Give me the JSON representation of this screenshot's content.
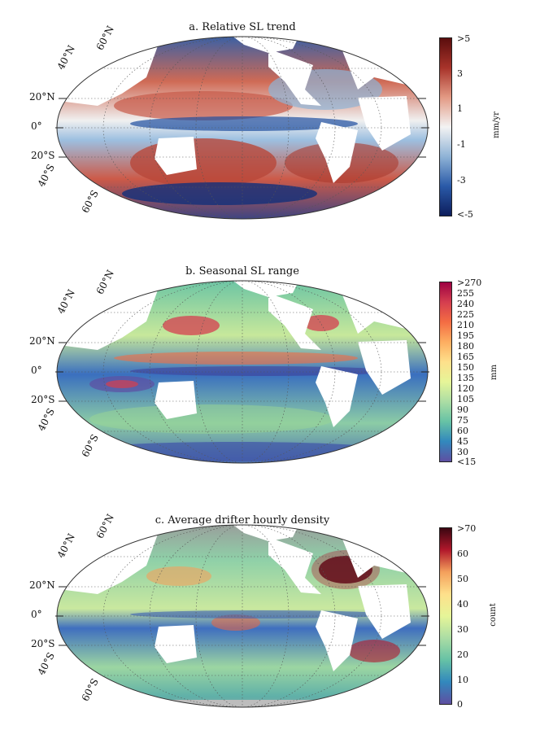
{
  "panels": [
    {
      "id": "a",
      "title": "a. Relative SL trend",
      "colorbar": {
        "unit": "mm/yr",
        "ticks": [
          ">5",
          "3",
          "1",
          "-1",
          "-3",
          "<-5"
        ],
        "colors": [
          "#5a0d0d",
          "#a8332a",
          "#e39a84",
          "#f3f3f3",
          "#8fb3d6",
          "#2a5aa8",
          "#0d1d5c"
        ]
      }
    },
    {
      "id": "b",
      "title": "b. Seasonal SL range",
      "colorbar": {
        "unit": "mm",
        "ticks": [
          ">270",
          "255",
          "240",
          "225",
          "210",
          "195",
          "180",
          "165",
          "150",
          "135",
          "120",
          "105",
          "90",
          "75",
          "60",
          "45",
          "30",
          "<15"
        ],
        "colors": [
          "#9e0142",
          "#d53e4f",
          "#f46d43",
          "#fdae61",
          "#fee08b",
          "#e6f598",
          "#abdda4",
          "#66c2a5",
          "#3288bd",
          "#5e4fa2"
        ]
      }
    },
    {
      "id": "c",
      "title": "c. Average drifter hourly density",
      "colorbar": {
        "unit": "count",
        "ticks": [
          ">70",
          "60",
          "50",
          "40",
          "30",
          "20",
          "10",
          "0"
        ],
        "colors": [
          "#3a0610",
          "#b2182b",
          "#f4a05c",
          "#fee08b",
          "#e6f598",
          "#abdda4",
          "#66c2a5",
          "#3288bd",
          "#5e4fa2"
        ]
      }
    }
  ],
  "lat_labels": [
    "60°N",
    "40°N",
    "20°N",
    "0°",
    "20°S",
    "40°S",
    "60°S"
  ],
  "map_colors": {
    "land": "#ffffff",
    "no_data": "#bdbdbd"
  }
}
